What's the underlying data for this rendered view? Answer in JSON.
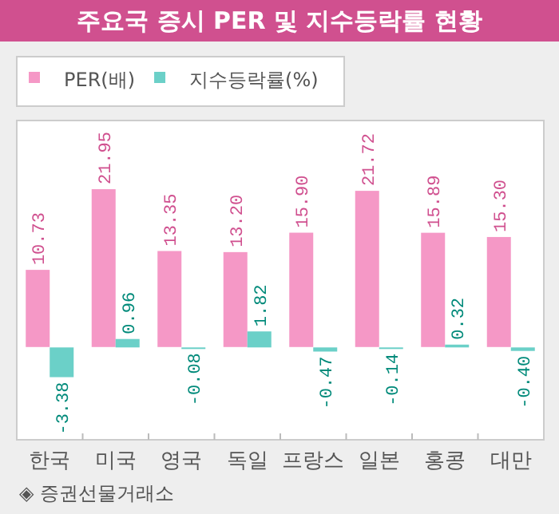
{
  "chart_data": {
    "type": "bar",
    "title": "주요국 증시 PER 및 지수등락률 현황",
    "categories": [
      "한국",
      "미국",
      "영국",
      "독일",
      "프랑스",
      "일본",
      "홍콩",
      "대만"
    ],
    "series": [
      {
        "name": "PER(배)",
        "color": "#f598c6",
        "values": [
          10.73,
          21.95,
          13.35,
          13.2,
          15.9,
          21.72,
          15.89,
          15.3
        ],
        "value_labels": [
          "10.73",
          "21.95",
          "13.35",
          "13.20",
          "15.90",
          "21.72",
          "15.89",
          "15.30"
        ]
      },
      {
        "name": "지수등락률(%)",
        "color": "#6bd0c8",
        "axis": "y2",
        "values": [
          -3.38,
          0.96,
          -0.08,
          1.82,
          -0.47,
          -0.14,
          0.32,
          -0.4
        ],
        "value_labels": [
          "-3.38",
          "0.96",
          "-0.08",
          "1.82",
          "-0.47",
          "-0.14",
          "0.32",
          "-0.40"
        ]
      }
    ],
    "ylim": [
      -12.9,
      31.5
    ],
    "y2lim": [
      -10.5,
      25.8
    ],
    "tick_labels": "x",
    "legend": "top left",
    "grid": false,
    "annotations": [
      "◈ 증권선물거래소"
    ]
  }
}
